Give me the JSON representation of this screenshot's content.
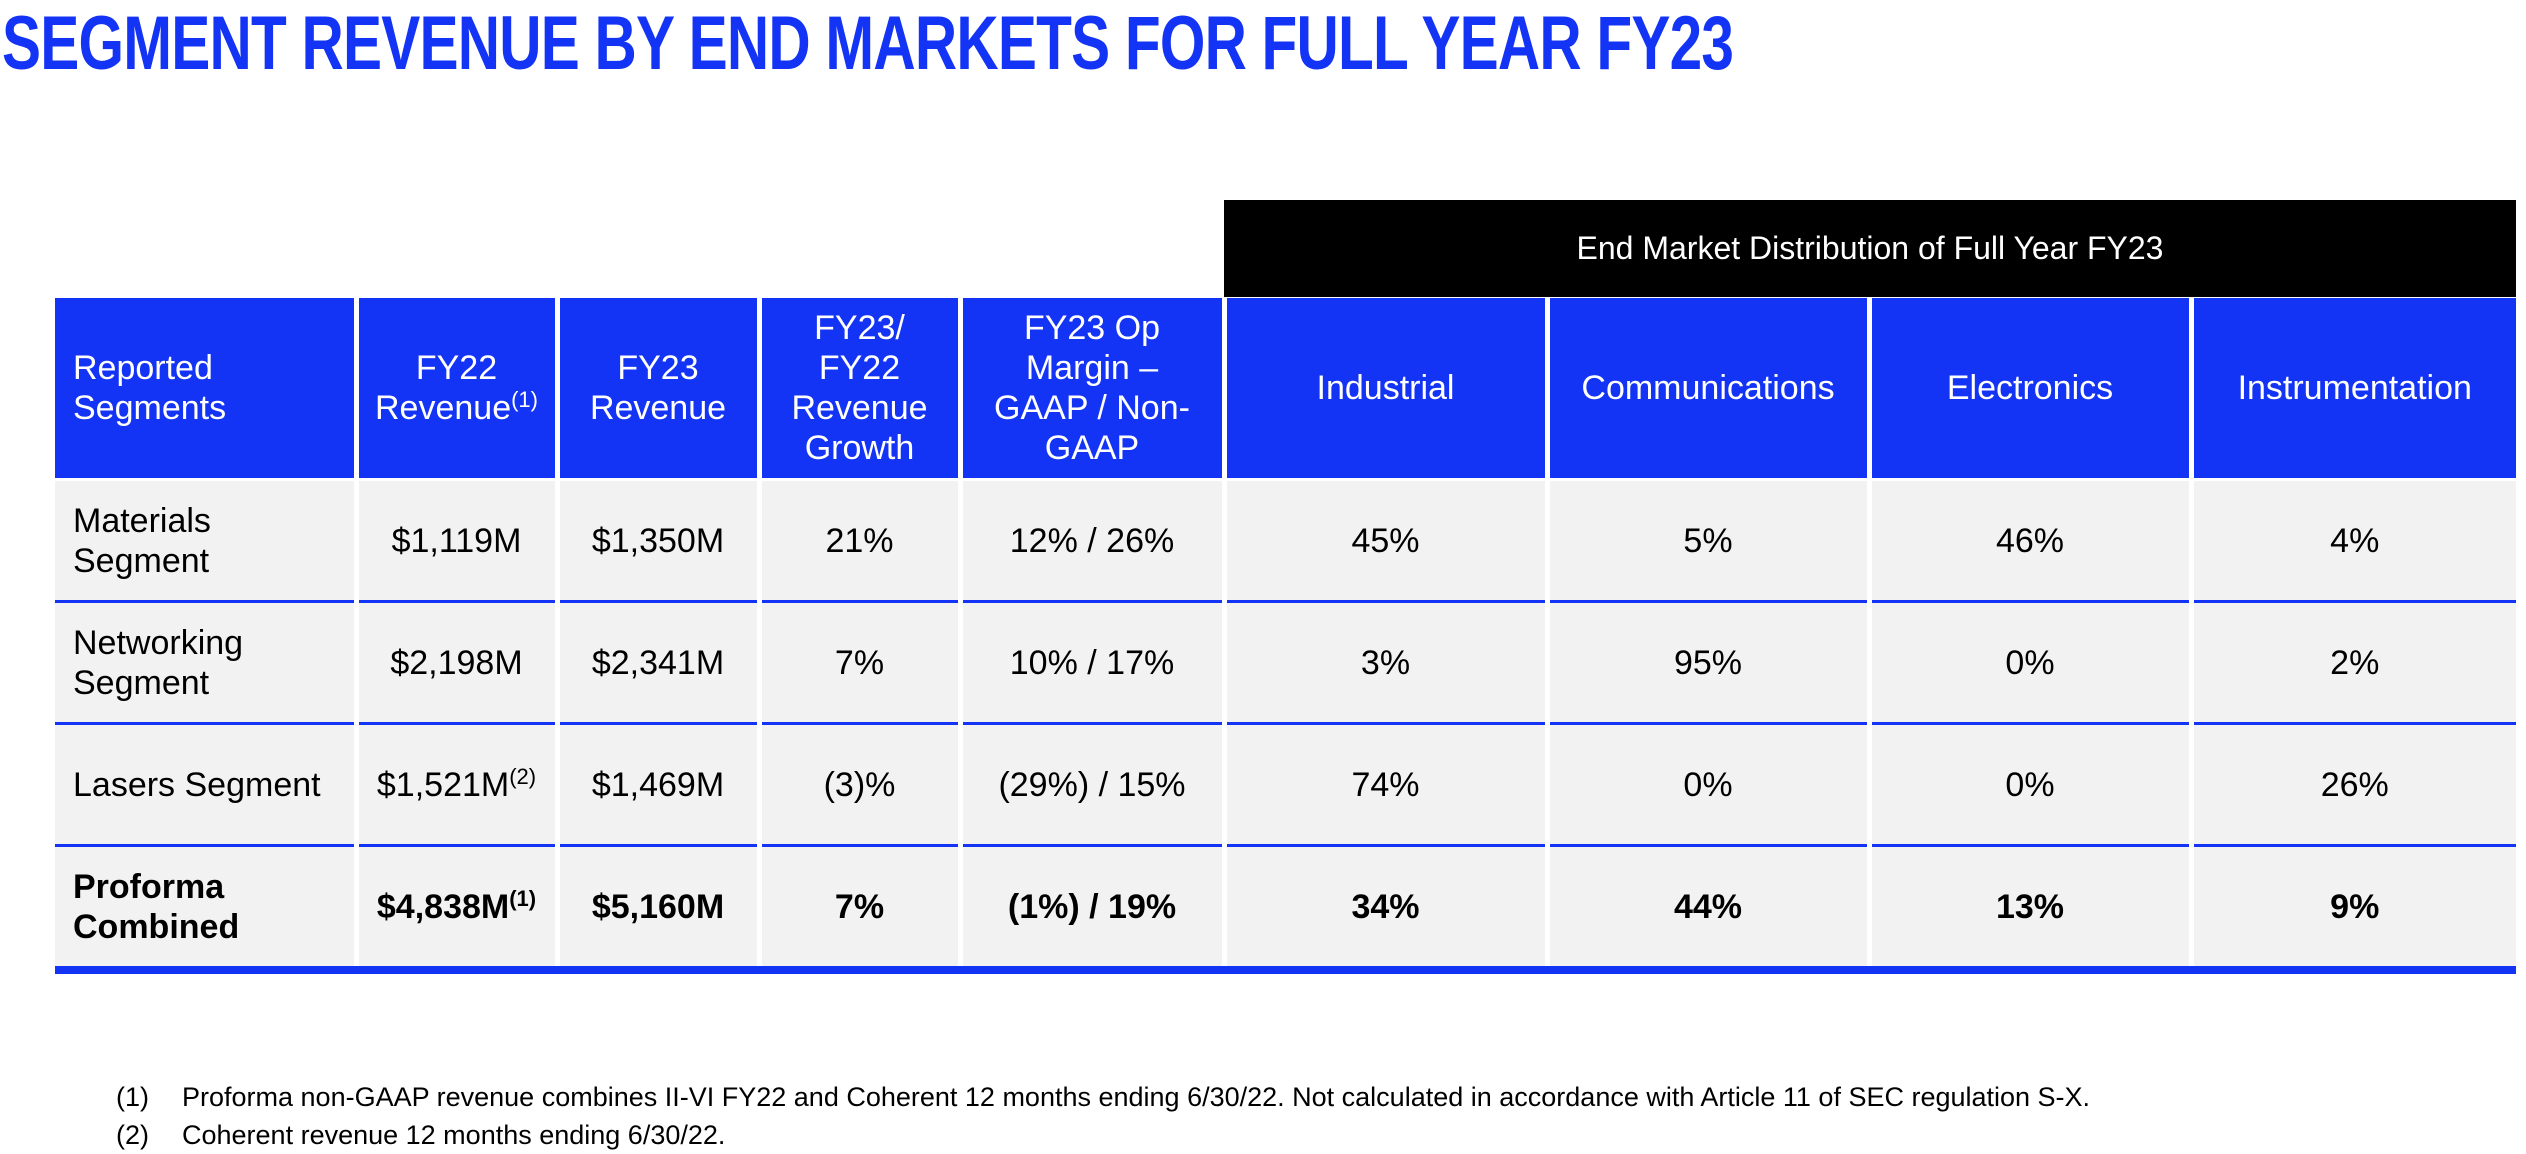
{
  "title": "SEGMENT REVENUE BY END MARKETS FOR FULL YEAR FY23",
  "table": {
    "group_header": "End Market Distribution of Full Year FY23",
    "headers": [
      {
        "text": "Reported Segments"
      },
      {
        "text": "FY22 Revenue",
        "note": "(1)"
      },
      {
        "text": "FY23 Revenue"
      },
      {
        "text": "FY23/ FY22 Revenue Growth"
      },
      {
        "text": "FY23 Op Margin – GAAP / Non-GAAP"
      },
      {
        "text": "Industrial"
      },
      {
        "text": "Communications"
      },
      {
        "text": "Electronics"
      },
      {
        "text": "Instrumentation"
      }
    ],
    "rows": [
      [
        {
          "text": "Materials Segment"
        },
        {
          "text": "$1,119M"
        },
        {
          "text": "$1,350M"
        },
        {
          "text": "21%"
        },
        {
          "text": "12% / 26%"
        },
        {
          "text": "45%"
        },
        {
          "text": "5%"
        },
        {
          "text": "46%"
        },
        {
          "text": "4%"
        }
      ],
      [
        {
          "text": "Networking Segment"
        },
        {
          "text": "$2,198M"
        },
        {
          "text": "$2,341M"
        },
        {
          "text": "7%"
        },
        {
          "text": "10% / 17%"
        },
        {
          "text": "3%"
        },
        {
          "text": "95%"
        },
        {
          "text": "0%"
        },
        {
          "text": "2%"
        }
      ],
      [
        {
          "text": "Lasers Segment"
        },
        {
          "text": "$1,521M",
          "note": "(2)"
        },
        {
          "text": "$1,469M"
        },
        {
          "text": "(3)%"
        },
        {
          "text": "(29%) / 15%"
        },
        {
          "text": "74%"
        },
        {
          "text": "0%"
        },
        {
          "text": "0%"
        },
        {
          "text": "26%"
        }
      ],
      [
        {
          "text": "Proforma Combined"
        },
        {
          "text": "$4,838M",
          "note": "(1)"
        },
        {
          "text": "$5,160M"
        },
        {
          "text": "7%"
        },
        {
          "text": "(1%) / 19%"
        },
        {
          "text": "34%"
        },
        {
          "text": "44%"
        },
        {
          "text": "13%"
        },
        {
          "text": "9%"
        }
      ]
    ]
  },
  "footnotes": [
    {
      "marker": "(1)",
      "text": "Proforma non-GAAP revenue combines II-VI FY22 and Coherent 12 months ending 6/30/22. Not calculated in accordance with Article 11 of SEC regulation S-X."
    },
    {
      "marker": "(2)",
      "text": "Coherent revenue 12 months ending 6/30/22."
    }
  ]
}
